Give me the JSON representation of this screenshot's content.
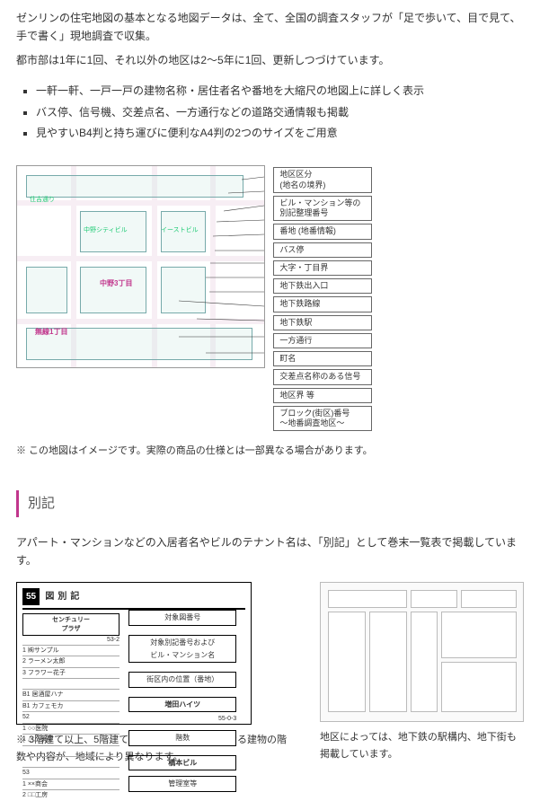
{
  "intro": {
    "p1": "ゼンリンの住宅地図の基本となる地図データは、全て、全国の調査スタッフが「足で歩いて、目で見て、手で書く」現地調査で収集。",
    "p2": "都市部は1年に1回、それ以外の地区は2〜5年に1回、更新しつづけています。"
  },
  "features": [
    "一軒一軒、一戸一戸の建物名称・居住者名や番地を大縮尺の地図上に詳しく表示",
    "バス停、信号機、交差点名、一方通行などの道路交通情報も掲載",
    "見やすいB4判と持ち運びに便利なA4判の2つのサイズをご用意"
  ],
  "map_legend": [
    "地区区分\n(地名の境界)",
    "ビル・マンション等の\n別記整理番号",
    "番地 (地番情報)",
    "バス停",
    "大字・丁目界",
    "地下鉄出入口",
    "地下鉄路線",
    "地下鉄駅",
    "一方通行",
    "町名",
    "交差点名称のある信号",
    "地区界 等",
    "ブロック(街区)番号\n〜地番調査地区〜"
  ],
  "map_labels": {
    "street": "住吉通り",
    "bldg1": "中野シティビル",
    "bldg2": "イーストビル",
    "area1": "中野3丁目",
    "area2": "無線1丁目"
  },
  "map_note": "※ この地図はイメージです。実際の商品の仕様とは一部異なる場合があります。",
  "sec_title": "別記",
  "sec_lead": "アパート・マンションなどの入居者名やビルのテナント名は、「別記」として巻末一覧表で掲載しています。",
  "fig2": {
    "num": "55",
    "title": "図別記",
    "rlabels": [
      "対象図番号",
      "対象別記番号および\nビル・マンション名",
      "街区内の位置（番地）",
      "階数",
      "管理室等"
    ],
    "left_title": "センチュリー\nプラザ",
    "left_addr": "53-2",
    "left_lines": [
      "1 ㈱サンプル",
      "2 ラーメン太郎",
      "3 フラワー花子",
      "",
      "B1 居酒屋ハナ",
      "B1 カフェモカ",
      "52",
      "1 ○○医院",
      "1 △△薬局",
      "",
      "",
      "53",
      "1 ××商会",
      "2 □□工房"
    ],
    "right_title2": "増田ハイツ",
    "right_addr": "55-0-3",
    "right_title3": "橋本ビル"
  },
  "cap2": "※ 3階建て以上、5階建て以上など収録の目安となる建物の階数や内容が、地域により異なります。",
  "cap3": "地区によっては、地下鉄の駅構内、地下街も掲載しています。",
  "colors": {
    "accent": "#c1368c"
  }
}
